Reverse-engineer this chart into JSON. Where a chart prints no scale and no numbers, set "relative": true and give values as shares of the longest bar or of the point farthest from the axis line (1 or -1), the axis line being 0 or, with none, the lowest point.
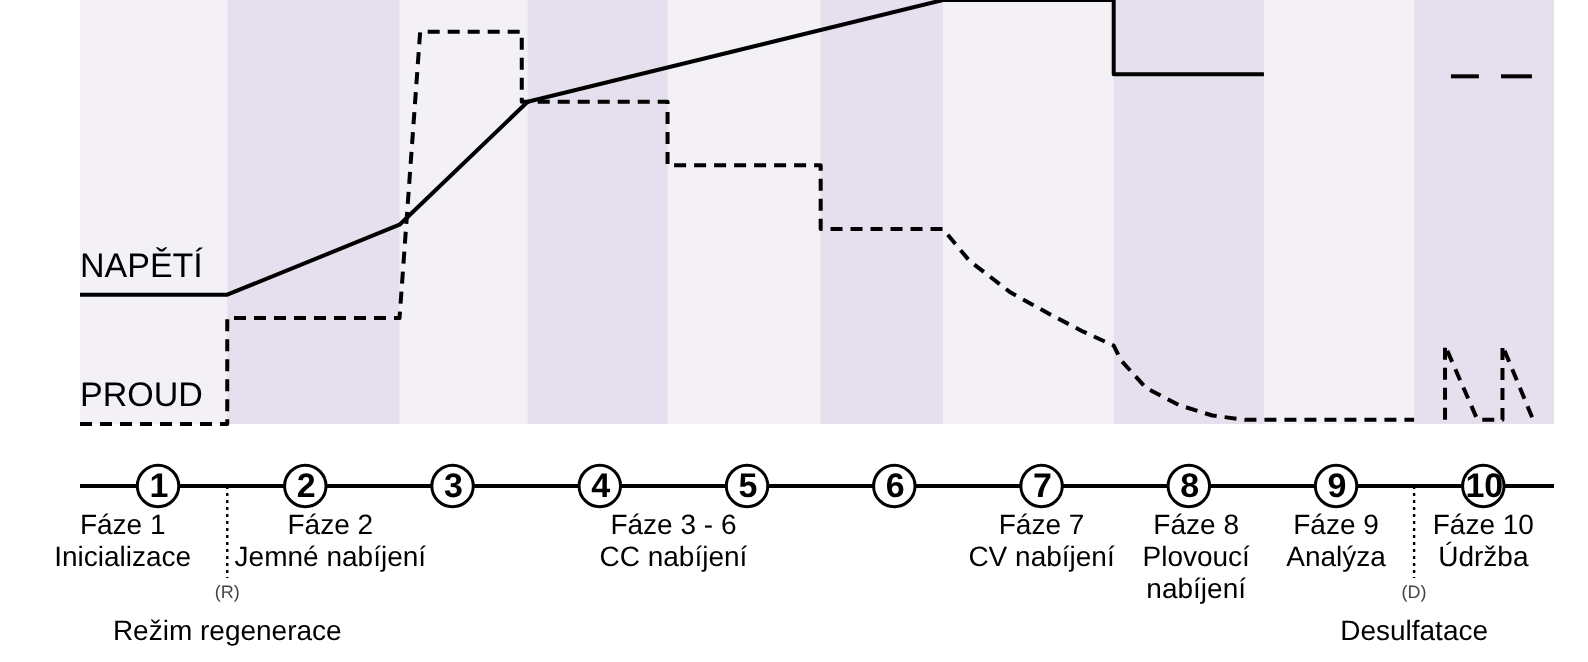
{
  "chart_data": {
    "type": "line",
    "relative": true,
    "marker": "none",
    "xlim": [
      0.47,
      10.48
    ],
    "xticks": [
      1,
      2,
      3,
      4,
      5,
      6,
      7,
      8,
      9,
      10
    ],
    "series": [
      {
        "name": "NAPĚTÍ",
        "color": "#000000",
        "line_style": "solid",
        "x": [
          0.47,
          1.47,
          2.64,
          3.51,
          6.33,
          7.49,
          7.49,
          8.51,
          9.04,
          9.78,
          9.97,
          10.04,
          10.12,
          10.33
        ],
        "values": [
          0.305,
          0.305,
          0.47,
          0.76,
          1,
          1,
          0.825,
          0.825,
          null,
          0.82,
          0.82,
          null,
          0.82,
          0.82
        ]
      },
      {
        "name": "PROUD",
        "color": "#000000",
        "line_style": "dashed",
        "x": [
          0.47,
          1.47,
          1.47,
          2.64,
          2.78,
          3.47,
          3.47,
          4.46,
          4.46,
          5.5,
          5.5,
          6.33,
          6.51,
          6.79,
          7.05,
          7.27,
          7.49,
          7.54,
          7.71,
          7.93,
          8.16,
          8.38,
          9.53,
          9.63,
          9.74,
          9.74,
          9.96,
          10.13,
          10.13,
          10.35
        ],
        "values": [
          0,
          0,
          0.25,
          0.25,
          0.925,
          0.925,
          0.76,
          0.76,
          0.61,
          0.61,
          0.46,
          0.46,
          0.385,
          0.31,
          0.26,
          0.22,
          0.185,
          0.15,
          0.085,
          0.045,
          0.02,
          0.01,
          0.01,
          null,
          0.01,
          0.185,
          0.01,
          0.01,
          0.185,
          0
        ]
      }
    ],
    "bands": [
      {
        "axis": "x",
        "from": 1.47,
        "to": 2.64,
        "color": "#e6e0ee"
      },
      {
        "axis": "x",
        "from": 3.51,
        "to": 4.46,
        "color": "#e6e0ee"
      },
      {
        "axis": "x",
        "from": 5.5,
        "to": 6.33,
        "color": "#e6e0ee"
      },
      {
        "axis": "x",
        "from": 7.49,
        "to": 8.51,
        "color": "#e6e0ee"
      },
      {
        "axis": "x",
        "from": 9.53,
        "to": 10.48,
        "color": "#e6e0ee"
      }
    ],
    "ref_lines": [
      {
        "axis": "x",
        "value": 1.47,
        "label": "(R)",
        "line_style": "dotted",
        "color": "#000000"
      },
      {
        "axis": "x",
        "value": 9.53,
        "label": "(D)",
        "line_style": "dotted",
        "color": "#000000"
      }
    ],
    "annotations": [
      "Fáze 1\nInicializace",
      "Fáze 2\nJemné nabíjení",
      "Fáze 3 - 6\nCC nabíjení",
      "Fáze 7\nCV nabíjení",
      "Fáze 8\nPlovoucí\nnabíjení",
      "Fáze 9\nAnalýza",
      "Fáze 10\nÚdržba",
      "Režim regenerace",
      "Desulfatace"
    ]
  }
}
